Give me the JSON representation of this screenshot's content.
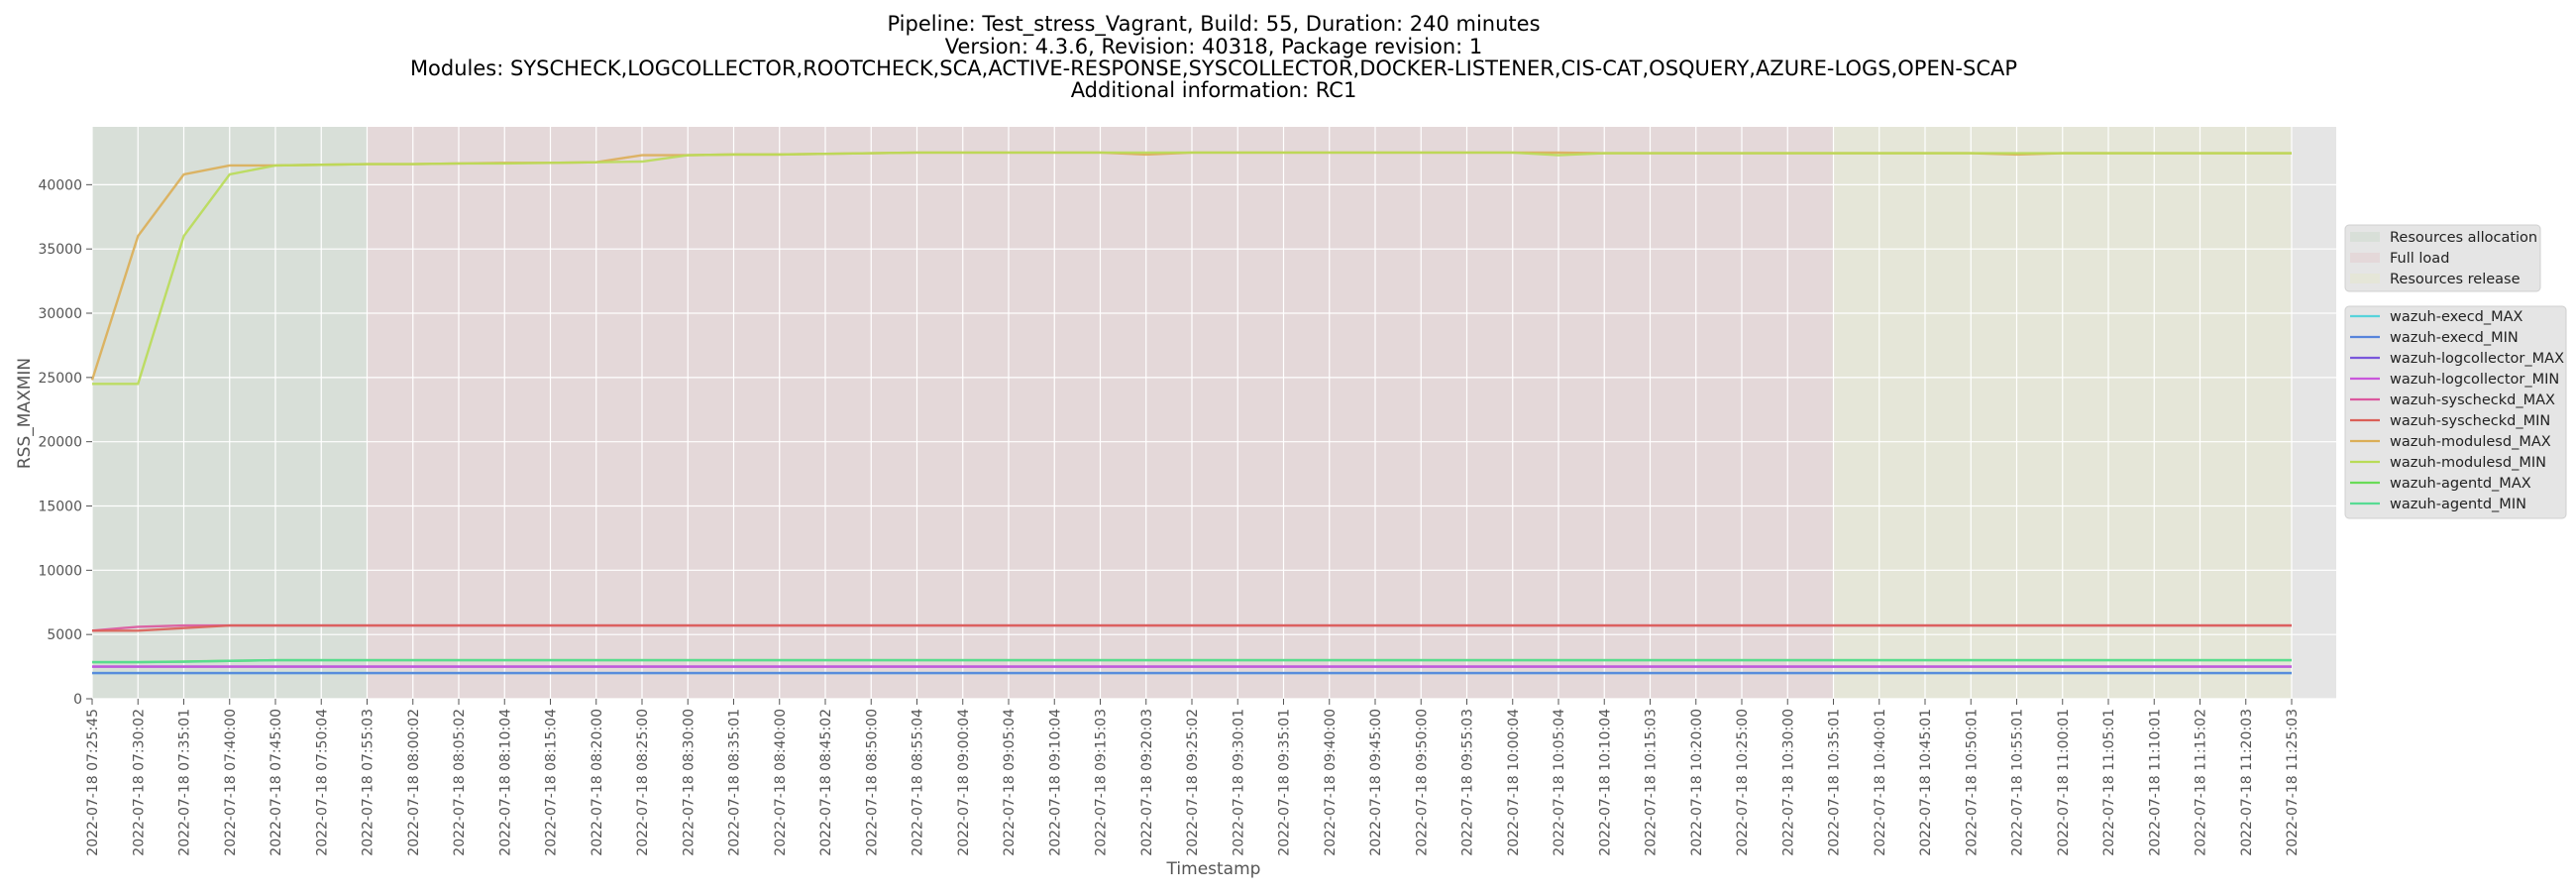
{
  "chart_data": {
    "type": "line",
    "title_lines": [
      "Pipeline: Test_stress_Vagrant, Build: 55, Duration: 240 minutes",
      "Version: 4.3.6, Revision: 40318, Package revision: 1",
      "Modules: SYSCHECK,LOGCOLLECTOR,ROOTCHECK,SCA,ACTIVE-RESPONSE,SYSCOLLECTOR,DOCKER-LISTENER,CIS-CAT,OSQUERY,AZURE-LOGS,OPEN-SCAP",
      "Additional information: RC1"
    ],
    "xlabel": "Timestamp",
    "ylabel": "RSS_MAXMIN",
    "ylim": [
      0,
      44500
    ],
    "yticks": [
      0,
      5000,
      10000,
      15000,
      20000,
      25000,
      30000,
      35000,
      40000
    ],
    "grid": true,
    "background": "#e5e5e5",
    "categories": [
      "2022-07-18 07:25:45",
      "2022-07-18 07:30:02",
      "2022-07-18 07:35:01",
      "2022-07-18 07:40:00",
      "2022-07-18 07:45:00",
      "2022-07-18 07:50:04",
      "2022-07-18 07:55:03",
      "2022-07-18 08:00:02",
      "2022-07-18 08:05:02",
      "2022-07-18 08:10:04",
      "2022-07-18 08:15:04",
      "2022-07-18 08:20:00",
      "2022-07-18 08:25:00",
      "2022-07-18 08:30:00",
      "2022-07-18 08:35:01",
      "2022-07-18 08:40:00",
      "2022-07-18 08:45:02",
      "2022-07-18 08:50:00",
      "2022-07-18 08:55:04",
      "2022-07-18 09:00:04",
      "2022-07-18 09:05:04",
      "2022-07-18 09:10:04",
      "2022-07-18 09:15:03",
      "2022-07-18 09:20:03",
      "2022-07-18 09:25:02",
      "2022-07-18 09:30:01",
      "2022-07-18 09:35:01",
      "2022-07-18 09:40:00",
      "2022-07-18 09:45:00",
      "2022-07-18 09:50:00",
      "2022-07-18 09:55:03",
      "2022-07-18 10:00:04",
      "2022-07-18 10:05:04",
      "2022-07-18 10:10:04",
      "2022-07-18 10:15:03",
      "2022-07-18 10:20:00",
      "2022-07-18 10:25:00",
      "2022-07-18 10:30:00",
      "2022-07-18 10:35:01",
      "2022-07-18 10:40:01",
      "2022-07-18 10:45:01",
      "2022-07-18 10:50:01",
      "2022-07-18 10:55:01",
      "2022-07-18 11:00:01",
      "2022-07-18 11:05:01",
      "2022-07-18 11:10:01",
      "2022-07-18 11:15:02",
      "2022-07-18 11:20:03",
      "2022-07-18 11:25:03"
    ],
    "phases": [
      {
        "name": "Resources allocation",
        "start": "2022-07-18 07:25:45",
        "end": "2022-07-18 07:55:03",
        "color": "#d8dfd8"
      },
      {
        "name": "Full load",
        "start": "2022-07-18 07:55:03",
        "end": "2022-07-18 10:35:01",
        "color": "#e4d8d9"
      },
      {
        "name": "Resources release",
        "start": "2022-07-18 10:35:01",
        "end": "2022-07-18 11:25:03",
        "color": "#e5e6d8"
      }
    ],
    "legend_placement": "right",
    "series": [
      {
        "name": "wazuh-execd_MAX",
        "color": "#57d3db",
        "values": [
          2000,
          2000,
          2000,
          2000,
          2000,
          2000,
          2000,
          2000,
          2000,
          2000,
          2000,
          2000,
          2000,
          2000,
          2000,
          2000,
          2000,
          2000,
          2000,
          2000,
          2000,
          2000,
          2000,
          2000,
          2000,
          2000,
          2000,
          2000,
          2000,
          2000,
          2000,
          2000,
          2000,
          2000,
          2000,
          2000,
          2000,
          2000,
          2000,
          2000,
          2000,
          2000,
          2000,
          2000,
          2000,
          2000,
          2000,
          2000,
          2000
        ]
      },
      {
        "name": "wazuh-execd_MIN",
        "color": "#5784db",
        "values": [
          2000,
          2000,
          2000,
          2000,
          2000,
          2000,
          2000,
          2000,
          2000,
          2000,
          2000,
          2000,
          2000,
          2000,
          2000,
          2000,
          2000,
          2000,
          2000,
          2000,
          2000,
          2000,
          2000,
          2000,
          2000,
          2000,
          2000,
          2000,
          2000,
          2000,
          2000,
          2000,
          2000,
          2000,
          2000,
          2000,
          2000,
          2000,
          2000,
          2000,
          2000,
          2000,
          2000,
          2000,
          2000,
          2000,
          2000,
          2000,
          2000
        ]
      },
      {
        "name": "wazuh-logcollector_MAX",
        "color": "#7957db",
        "values": [
          2500,
          2500,
          2500,
          2500,
          2500,
          2500,
          2500,
          2500,
          2500,
          2500,
          2500,
          2500,
          2500,
          2500,
          2500,
          2500,
          2500,
          2500,
          2500,
          2500,
          2500,
          2500,
          2500,
          2500,
          2500,
          2500,
          2500,
          2500,
          2500,
          2500,
          2500,
          2500,
          2500,
          2500,
          2500,
          2500,
          2500,
          2500,
          2500,
          2500,
          2500,
          2500,
          2500,
          2500,
          2500,
          2500,
          2500,
          2500,
          2500
        ]
      },
      {
        "name": "wazuh-logcollector_MIN",
        "color": "#c957db",
        "values": [
          2500,
          2500,
          2500,
          2500,
          2500,
          2500,
          2500,
          2500,
          2500,
          2500,
          2500,
          2500,
          2500,
          2500,
          2500,
          2500,
          2500,
          2500,
          2500,
          2500,
          2500,
          2500,
          2500,
          2500,
          2500,
          2500,
          2500,
          2500,
          2500,
          2500,
          2500,
          2500,
          2500,
          2500,
          2500,
          2500,
          2500,
          2500,
          2500,
          2500,
          2500,
          2500,
          2500,
          2500,
          2500,
          2500,
          2500,
          2500,
          2500
        ]
      },
      {
        "name": "wazuh-syscheckd_MAX",
        "color": "#db579e",
        "values": [
          5300,
          5600,
          5700,
          5700,
          5700,
          5700,
          5700,
          5700,
          5700,
          5700,
          5700,
          5700,
          5700,
          5700,
          5700,
          5700,
          5700,
          5700,
          5700,
          5700,
          5700,
          5700,
          5700,
          5700,
          5700,
          5700,
          5700,
          5700,
          5700,
          5700,
          5700,
          5700,
          5700,
          5700,
          5700,
          5700,
          5700,
          5700,
          5700,
          5700,
          5700,
          5700,
          5700,
          5700,
          5700,
          5700,
          5700,
          5700,
          5700
        ]
      },
      {
        "name": "wazuh-syscheckd_MIN",
        "color": "#db5f57",
        "values": [
          5300,
          5300,
          5500,
          5700,
          5700,
          5700,
          5700,
          5700,
          5700,
          5700,
          5700,
          5700,
          5700,
          5700,
          5700,
          5700,
          5700,
          5700,
          5700,
          5700,
          5700,
          5700,
          5700,
          5700,
          5700,
          5700,
          5700,
          5700,
          5700,
          5700,
          5700,
          5700,
          5700,
          5700,
          5700,
          5700,
          5700,
          5700,
          5700,
          5700,
          5700,
          5700,
          5700,
          5700,
          5700,
          5700,
          5700,
          5700,
          5700
        ]
      },
      {
        "name": "wazuh-modulesd_MAX",
        "color": "#dbae57",
        "values": [
          24800,
          36000,
          40800,
          41500,
          41500,
          41550,
          41600,
          41600,
          41650,
          41700,
          41700,
          41750,
          42300,
          42300,
          42350,
          42350,
          42400,
          42450,
          42500,
          42500,
          42500,
          42500,
          42500,
          42350,
          42500,
          42500,
          42500,
          42500,
          42500,
          42500,
          42500,
          42500,
          42500,
          42450,
          42450,
          42450,
          42450,
          42450,
          42450,
          42450,
          42450,
          42450,
          42350,
          42450,
          42450,
          42450,
          42450,
          42450,
          42450
        ]
      },
      {
        "name": "wazuh-modulesd_MIN",
        "color": "#b9db57",
        "values": [
          24500,
          24500,
          36000,
          40800,
          41500,
          41550,
          41600,
          41600,
          41650,
          41650,
          41700,
          41750,
          41800,
          42300,
          42350,
          42350,
          42400,
          42450,
          42500,
          42500,
          42500,
          42500,
          42500,
          42500,
          42500,
          42500,
          42500,
          42500,
          42500,
          42500,
          42500,
          42500,
          42300,
          42450,
          42450,
          42450,
          42450,
          42450,
          42450,
          42450,
          42450,
          42450,
          42450,
          42450,
          42450,
          42450,
          42450,
          42450,
          42450
        ]
      },
      {
        "name": "wazuh-agentd_MAX",
        "color": "#69db57",
        "values": [
          2850,
          2850,
          2900,
          2950,
          3000,
          3000,
          3000,
          3000,
          3000,
          3000,
          3000,
          3000,
          3000,
          3000,
          3000,
          3000,
          3000,
          3000,
          3000,
          3000,
          3000,
          3000,
          3000,
          3000,
          3000,
          3000,
          3000,
          3000,
          3000,
          3000,
          3000,
          3000,
          3000,
          3000,
          3000,
          3000,
          3000,
          3000,
          3000,
          3000,
          3000,
          3000,
          3000,
          3000,
          3000,
          3000,
          3000,
          3000,
          3000
        ]
      },
      {
        "name": "wazuh-agentd_MIN",
        "color": "#57db94",
        "values": [
          2850,
          2850,
          2880,
          2950,
          3000,
          3000,
          3000,
          3000,
          3000,
          3000,
          3000,
          3000,
          3000,
          3000,
          3000,
          3000,
          3000,
          3000,
          3000,
          3000,
          3000,
          3000,
          3000,
          3000,
          3000,
          3000,
          3000,
          3000,
          3000,
          3000,
          3000,
          3000,
          3000,
          3000,
          3000,
          3000,
          3000,
          3000,
          3000,
          3000,
          3000,
          3000,
          3000,
          3000,
          3000,
          3000,
          3000,
          3000,
          3000
        ]
      }
    ]
  }
}
